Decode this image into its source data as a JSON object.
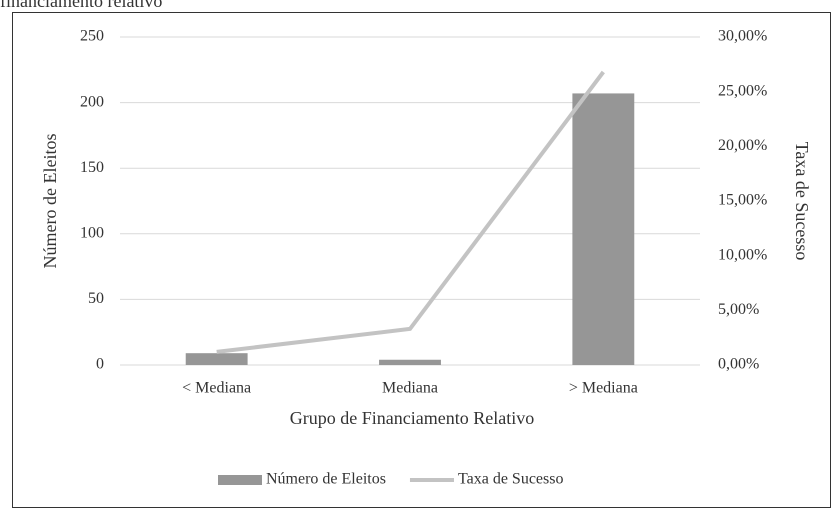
{
  "chart_data": {
    "type": "bar_line",
    "title": "financiamento relativo",
    "x_label": "Grupo de Financiamento Relativo",
    "y_label": "Número de Eleitos",
    "y2_label": "Taxa de Sucesso",
    "categories": [
      "< Mediana",
      "Mediana",
      "> Mediana"
    ],
    "series": [
      {
        "name": "Número de Eleitos",
        "color": "#969696",
        "type": "bar",
        "values": [
          9,
          4,
          207
        ]
      },
      {
        "name": "Taxa de Sucesso",
        "color": "#c3c3c3",
        "type": "line",
        "axis": "y2",
        "values": [
          1.2,
          3.3,
          26.8
        ]
      }
    ],
    "ylim": [
      0,
      250
    ],
    "yticks": [
      0,
      50,
      100,
      150,
      200,
      250
    ],
    "y2lim": [
      0,
      30
    ],
    "y2ticks": [
      {
        "value": 0,
        "label": "0,00%"
      },
      {
        "value": 5,
        "label": "5,00%"
      },
      {
        "value": 10,
        "label": "10,00%"
      },
      {
        "value": 15,
        "label": "15,00%"
      },
      {
        "value": 20,
        "label": "20,00%"
      },
      {
        "value": 25,
        "label": "25,00%"
      },
      {
        "value": 30,
        "label": "30,00%"
      }
    ],
    "grid": true,
    "legend": "bottom"
  }
}
